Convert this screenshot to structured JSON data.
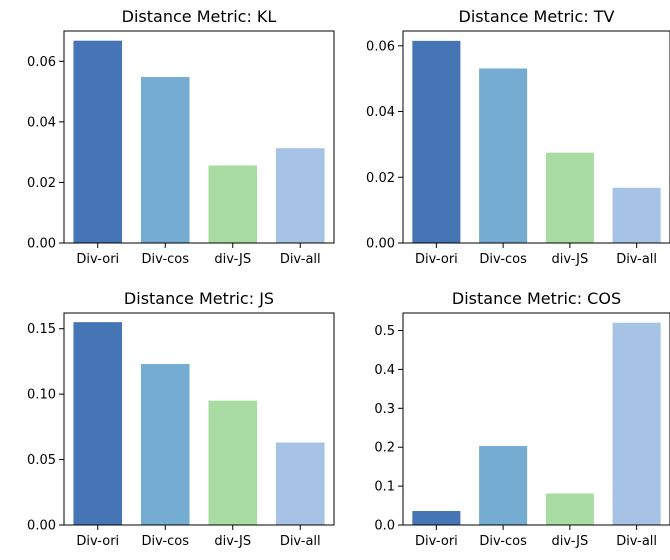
{
  "chart_data": [
    {
      "type": "bar",
      "title": "Distance Metric: KL",
      "categories": [
        "Div-ori",
        "Div-cos",
        "div-JS",
        "Div-all"
      ],
      "values": [
        0.0668,
        0.0548,
        0.0256,
        0.0313
      ],
      "ylim": [
        0,
        0.07
      ],
      "yticks": [
        0.0,
        0.02,
        0.04,
        0.06
      ],
      "ytick_labels": [
        "0.00",
        "0.02",
        "0.04",
        "0.06"
      ],
      "colors": [
        "#4575b4",
        "#74add1",
        "#a9dca3",
        "#a6c2e4"
      ],
      "grid": false
    },
    {
      "type": "bar",
      "title": "Distance Metric: TV",
      "categories": [
        "Div-ori",
        "Div-cos",
        "div-JS",
        "Div-all"
      ],
      "values": [
        0.0615,
        0.0531,
        0.0275,
        0.0168
      ],
      "ylim": [
        0,
        0.0645
      ],
      "yticks": [
        0.0,
        0.02,
        0.04,
        0.06
      ],
      "ytick_labels": [
        "0.00",
        "0.02",
        "0.04",
        "0.06"
      ],
      "colors": [
        "#4575b4",
        "#74add1",
        "#a9dca3",
        "#a6c2e4"
      ],
      "grid": false
    },
    {
      "type": "bar",
      "title": "Distance Metric: JS",
      "categories": [
        "Div-ori",
        "Div-cos",
        "div-JS",
        "Div-all"
      ],
      "values": [
        0.155,
        0.123,
        0.095,
        0.063
      ],
      "ylim": [
        0,
        0.162
      ],
      "yticks": [
        0.0,
        0.05,
        0.1,
        0.15
      ],
      "ytick_labels": [
        "0.00",
        "0.05",
        "0.10",
        "0.15"
      ],
      "colors": [
        "#4575b4",
        "#74add1",
        "#a9dca3",
        "#a6c2e4"
      ],
      "grid": false
    },
    {
      "type": "bar",
      "title": "Distance Metric: COS",
      "categories": [
        "Div-ori",
        "Div-cos",
        "div-JS",
        "Div-all"
      ],
      "values": [
        0.036,
        0.203,
        0.081,
        0.52
      ],
      "ylim": [
        0,
        0.545
      ],
      "yticks": [
        0.0,
        0.1,
        0.2,
        0.3,
        0.4,
        0.5
      ],
      "ytick_labels": [
        "0.0",
        "0.1",
        "0.2",
        "0.3",
        "0.4",
        "0.5"
      ],
      "colors": [
        "#4575b4",
        "#74add1",
        "#a9dca3",
        "#a6c2e4"
      ],
      "grid": false
    }
  ]
}
